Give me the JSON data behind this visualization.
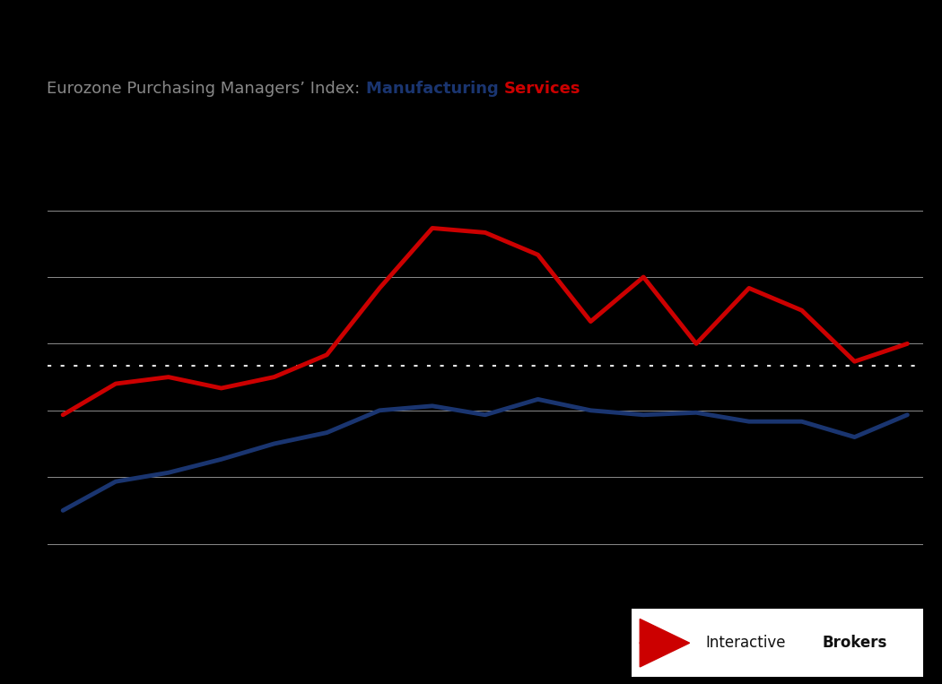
{
  "title_prefix": "Eurozone Purchasing Managers’ Index: ",
  "title_manufacturing": "Manufacturing",
  "title_services": "Services",
  "manufacturing_color": "#1a3570",
  "services_color": "#cc0000",
  "title_prefix_color": "#888888",
  "background_color": "#000000",
  "x_values": [
    0,
    1,
    2,
    3,
    4,
    5,
    6,
    7,
    8,
    9,
    10,
    11,
    12,
    13,
    14,
    15,
    16
  ],
  "manufacturing": [
    43.5,
    44.8,
    45.2,
    45.8,
    46.5,
    47.0,
    48.0,
    48.2,
    47.8,
    48.5,
    48.0,
    47.8,
    47.9,
    47.5,
    47.5,
    46.8,
    47.8
  ],
  "services": [
    47.8,
    49.2,
    49.5,
    49.0,
    49.5,
    50.5,
    53.5,
    56.2,
    56.0,
    55.0,
    52.0,
    54.0,
    51.0,
    53.5,
    52.5,
    50.2,
    51.0
  ],
  "threshold_line": 50.0,
  "ylim_min": 40,
  "ylim_max": 60,
  "grid_values": [
    42,
    45,
    48,
    51,
    54,
    57
  ],
  "line_width": 3.5,
  "title_fontsize": 13,
  "logo_fontsize": 12,
  "dot_style_threshold": [
    3,
    6
  ]
}
